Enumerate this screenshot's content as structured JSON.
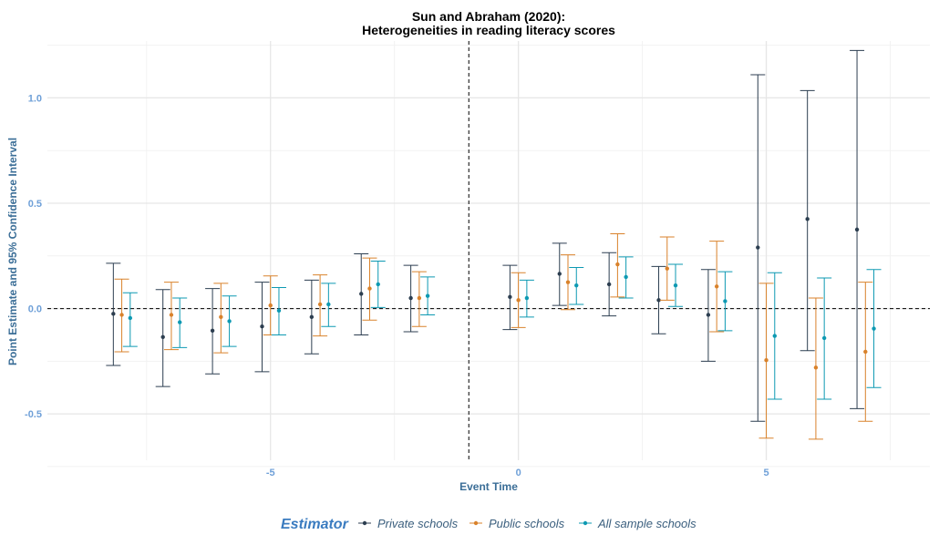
{
  "chart_data": {
    "type": "scatter",
    "title": "Sun and Abraham (2020):",
    "subtitle": "Heterogeneities in reading literacy scores",
    "xlabel": "Event Time",
    "ylabel": "Point Estimate and 95% Confidence Interval",
    "x_ticks": [
      "-5",
      "0",
      "5"
    ],
    "y_ticks": [
      "-0.5",
      "0.0",
      "0.5",
      "1.0"
    ],
    "xlim": [
      -9.5,
      8.3
    ],
    "ylim": [
      -0.72,
      1.27
    ],
    "reference_lines": {
      "horizontal_y": 0,
      "vertical_x": -1
    },
    "grid": true,
    "legend": {
      "title": "Estimator",
      "position": "bottom",
      "entries": [
        "Private schools",
        "Public schools",
        "All sample schools"
      ]
    },
    "series": [
      {
        "name": "Private schools",
        "color": "#2c3e50",
        "points": [
          {
            "x": -8,
            "y": -0.025,
            "lo": -0.27,
            "hi": 0.215
          },
          {
            "x": -7,
            "y": -0.135,
            "lo": -0.37,
            "hi": 0.09
          },
          {
            "x": -6,
            "y": -0.105,
            "lo": -0.31,
            "hi": 0.095
          },
          {
            "x": -5,
            "y": -0.085,
            "lo": -0.3,
            "hi": 0.125
          },
          {
            "x": -4,
            "y": -0.04,
            "lo": -0.215,
            "hi": 0.135
          },
          {
            "x": -3,
            "y": 0.07,
            "lo": -0.125,
            "hi": 0.26
          },
          {
            "x": -2,
            "y": 0.05,
            "lo": -0.11,
            "hi": 0.205
          },
          {
            "x": 0,
            "y": 0.055,
            "lo": -0.1,
            "hi": 0.205
          },
          {
            "x": 1,
            "y": 0.165,
            "lo": 0.015,
            "hi": 0.31
          },
          {
            "x": 2,
            "y": 0.115,
            "lo": -0.035,
            "hi": 0.265
          },
          {
            "x": 3,
            "y": 0.04,
            "lo": -0.12,
            "hi": 0.2
          },
          {
            "x": 4,
            "y": -0.03,
            "lo": -0.25,
            "hi": 0.185
          },
          {
            "x": 5,
            "y": 0.29,
            "lo": -0.535,
            "hi": 1.11
          },
          {
            "x": 6,
            "y": 0.425,
            "lo": -0.2,
            "hi": 1.035
          },
          {
            "x": 7,
            "y": 0.375,
            "lo": -0.475,
            "hi": 1.225
          }
        ]
      },
      {
        "name": "Public schools",
        "color": "#d9822b",
        "points": [
          {
            "x": -8,
            "y": -0.03,
            "lo": -0.205,
            "hi": 0.14
          },
          {
            "x": -7,
            "y": -0.03,
            "lo": -0.195,
            "hi": 0.125
          },
          {
            "x": -6,
            "y": -0.04,
            "lo": -0.21,
            "hi": 0.12
          },
          {
            "x": -5,
            "y": 0.015,
            "lo": -0.125,
            "hi": 0.155
          },
          {
            "x": -4,
            "y": 0.02,
            "lo": -0.13,
            "hi": 0.16
          },
          {
            "x": -3,
            "y": 0.095,
            "lo": -0.055,
            "hi": 0.24
          },
          {
            "x": -2,
            "y": 0.05,
            "lo": -0.085,
            "hi": 0.175
          },
          {
            "x": 0,
            "y": 0.04,
            "lo": -0.09,
            "hi": 0.17
          },
          {
            "x": 1,
            "y": 0.125,
            "lo": -0.005,
            "hi": 0.255
          },
          {
            "x": 2,
            "y": 0.21,
            "lo": 0.055,
            "hi": 0.355
          },
          {
            "x": 3,
            "y": 0.19,
            "lo": 0.04,
            "hi": 0.34
          },
          {
            "x": 4,
            "y": 0.105,
            "lo": -0.11,
            "hi": 0.32
          },
          {
            "x": 5,
            "y": -0.245,
            "lo": -0.615,
            "hi": 0.12
          },
          {
            "x": 6,
            "y": -0.28,
            "lo": -0.62,
            "hi": 0.05
          },
          {
            "x": 7,
            "y": -0.205,
            "lo": -0.535,
            "hi": 0.125
          }
        ]
      },
      {
        "name": "All sample schools",
        "color": "#0d99b2",
        "points": [
          {
            "x": -8,
            "y": -0.045,
            "lo": -0.18,
            "hi": 0.075
          },
          {
            "x": -7,
            "y": -0.065,
            "lo": -0.185,
            "hi": 0.05
          },
          {
            "x": -6,
            "y": -0.06,
            "lo": -0.18,
            "hi": 0.06
          },
          {
            "x": -5,
            "y": -0.01,
            "lo": -0.125,
            "hi": 0.1
          },
          {
            "x": -4,
            "y": 0.02,
            "lo": -0.085,
            "hi": 0.12
          },
          {
            "x": -3,
            "y": 0.115,
            "lo": 0.005,
            "hi": 0.225
          },
          {
            "x": -2,
            "y": 0.06,
            "lo": -0.03,
            "hi": 0.15
          },
          {
            "x": 0,
            "y": 0.05,
            "lo": -0.04,
            "hi": 0.135
          },
          {
            "x": 1,
            "y": 0.11,
            "lo": 0.02,
            "hi": 0.195
          },
          {
            "x": 2,
            "y": 0.15,
            "lo": 0.05,
            "hi": 0.245
          },
          {
            "x": 3,
            "y": 0.11,
            "lo": 0.01,
            "hi": 0.21
          },
          {
            "x": 4,
            "y": 0.035,
            "lo": -0.105,
            "hi": 0.175
          },
          {
            "x": 5,
            "y": -0.13,
            "lo": -0.43,
            "hi": 0.17
          },
          {
            "x": 6,
            "y": -0.14,
            "lo": -0.43,
            "hi": 0.145
          },
          {
            "x": 7,
            "y": -0.095,
            "lo": -0.375,
            "hi": 0.185
          }
        ]
      }
    ]
  }
}
